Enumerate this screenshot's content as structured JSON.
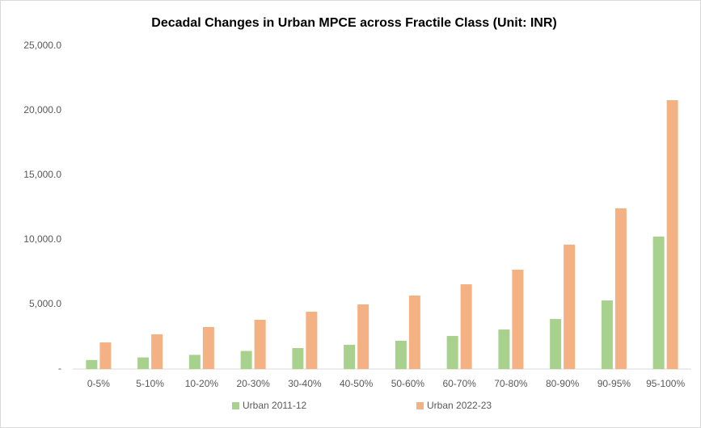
{
  "chart_data": {
    "type": "bar",
    "title": "Decadal Changes in Urban MPCE across Fractile Class (Unit: INR)",
    "categories": [
      "0-5%",
      "5-10%",
      "10-20%",
      "20-30%",
      "30-40%",
      "40-50%",
      "50-60%",
      "60-70%",
      "70-80%",
      "80-90%",
      "90-95%",
      "95-100%"
    ],
    "series": [
      {
        "name": "Urban 2011-12",
        "color": "#a9d18e",
        "values": [
          700,
          900,
          1100,
          1400,
          1625,
          1875,
          2190,
          2560,
          3060,
          3875,
          5310,
          10250
        ]
      },
      {
        "name": "Urban 2022-23",
        "color": "#f4b183",
        "values": [
          2060,
          2690,
          3250,
          3810,
          4440,
          5000,
          5690,
          6560,
          7690,
          9630,
          12440,
          20810
        ]
      }
    ],
    "ylim": [
      0,
      25000
    ],
    "yticks": [
      {
        "value": 0,
        "label": "-"
      },
      {
        "value": 5000,
        "label": "5,000.0"
      },
      {
        "value": 10000,
        "label": "10,000.0"
      },
      {
        "value": 15000,
        "label": "15,000.0"
      },
      {
        "value": 20000,
        "label": "20,000.0"
      },
      {
        "value": 25000,
        "label": "25,000.0"
      }
    ],
    "grid": false,
    "legend": "bottom"
  }
}
